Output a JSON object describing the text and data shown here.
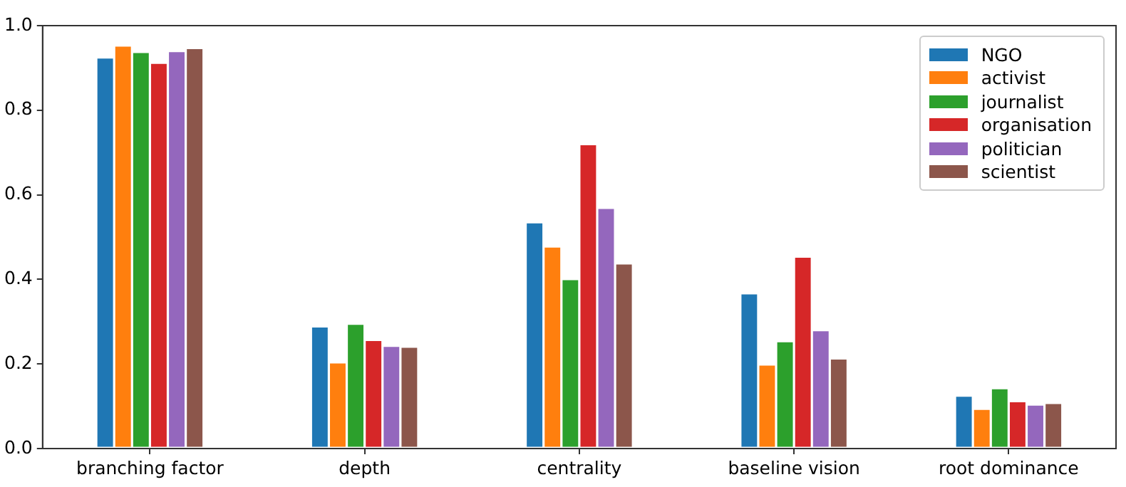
{
  "chart_data": {
    "type": "bar",
    "categories": [
      "branching factor",
      "depth",
      "centrality",
      "baseline vision",
      "root dominance"
    ],
    "series": [
      {
        "name": "NGO",
        "color": "#1f77b4",
        "values": [
          0.925,
          0.289,
          0.535,
          0.367,
          0.125
        ]
      },
      {
        "name": "activist",
        "color": "#ff7f0e",
        "values": [
          0.953,
          0.204,
          0.478,
          0.199,
          0.094
        ]
      },
      {
        "name": "journalist",
        "color": "#2ca02c",
        "values": [
          0.938,
          0.295,
          0.401,
          0.254,
          0.143
        ]
      },
      {
        "name": "organisation",
        "color": "#d62728",
        "values": [
          0.912,
          0.257,
          0.72,
          0.454,
          0.112
        ]
      },
      {
        "name": "politician",
        "color": "#9467bd",
        "values": [
          0.94,
          0.243,
          0.569,
          0.28,
          0.104
        ]
      },
      {
        "name": "scientist",
        "color": "#8c564b",
        "values": [
          0.947,
          0.241,
          0.438,
          0.213,
          0.108
        ]
      }
    ],
    "ylim": [
      0,
      1.0
    ],
    "yticks": [
      {
        "value": 0,
        "label": "0.0"
      },
      {
        "value": 0.2,
        "label": "0.2"
      },
      {
        "value": 0.4,
        "label": "0.4"
      },
      {
        "value": 0.6,
        "label": "0.6"
      },
      {
        "value": 0.8,
        "label": "0.8"
      },
      {
        "value": 1.0,
        "label": "1.0"
      }
    ],
    "grid": false,
    "legend": "top right"
  }
}
